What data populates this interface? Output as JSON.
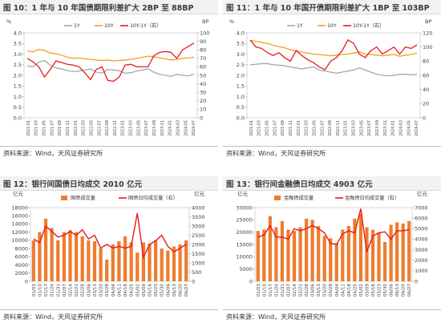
{
  "source_text": "资料来源：Wind，天风证券研究所",
  "colors": {
    "gray": "#a6a6a6",
    "orange": "#f4a11a",
    "red": "#e81a1a",
    "bar": "#ed7d31",
    "axis": "#7f7f7f"
  },
  "chart_data": [
    {
      "type": "line",
      "title": "图 10：1 年与 10 年国债期限利差扩大 2BP 至 88BP",
      "left_unit": "%",
      "right_unit": "BP",
      "left_ylim": [
        0.0,
        4.0
      ],
      "left_ticks": [
        "0.0",
        "0.5",
        "1.0",
        "1.5",
        "2.0",
        "2.5",
        "3.0",
        "3.5",
        "4.0"
      ],
      "right_ylim": [
        0,
        100
      ],
      "right_ticks": [
        "0",
        "10",
        "20",
        "30",
        "40",
        "50",
        "60",
        "70",
        "80",
        "90",
        "100"
      ],
      "x_ticks": [
        "2021-01",
        "2021-03",
        "2021-05",
        "2021-07",
        "2021-09",
        "2021-11",
        "2022-01",
        "2022-03",
        "2022-05",
        "2022-07",
        "2022-09",
        "2022-11",
        "2023-01",
        "2023-03",
        "2023-05",
        "2023-07",
        "2023-09",
        "2023-11",
        "2024-01",
        "2024-03",
        "2024-05",
        "2024-07"
      ],
      "series": [
        {
          "name": "1Y",
          "axis": "left",
          "color": "#a6a6a6",
          "values": [
            2.45,
            2.4,
            2.62,
            2.7,
            2.48,
            2.35,
            2.3,
            2.22,
            2.18,
            2.2,
            2.25,
            2.3,
            2.15,
            2.1,
            2.28,
            2.25,
            2.22,
            2.1,
            2.12,
            2.2,
            2.25,
            2.3,
            2.15,
            2.05,
            2.0,
            1.95,
            2.05,
            2.0,
            1.98,
            2.05
          ]
        },
        {
          "name": "10Y",
          "axis": "left",
          "color": "#f4a11a",
          "values": [
            3.15,
            3.1,
            3.22,
            3.18,
            3.05,
            3.02,
            2.95,
            2.85,
            2.8,
            2.82,
            2.78,
            2.75,
            2.72,
            2.7,
            2.72,
            2.68,
            2.7,
            2.72,
            2.75,
            2.8,
            2.85,
            2.9,
            2.88,
            2.82,
            2.78,
            2.72,
            2.75,
            2.8,
            2.82,
            2.85
          ]
        },
        {
          "name": "10Y-1Y（右）",
          "axis": "right",
          "color": "#e81a1a",
          "values": [
            70,
            66,
            60,
            48,
            57,
            67,
            65,
            63,
            62,
            60,
            53,
            45,
            57,
            60,
            44,
            43,
            48,
            62,
            63,
            60,
            60,
            60,
            73,
            77,
            78,
            77,
            70,
            80,
            84,
            88
          ]
        }
      ]
    },
    {
      "type": "line",
      "title": "图 11：1 年与 10 年国开债期限利差扩大 1BP 至 103BP",
      "left_unit": "%",
      "right_unit": "BP",
      "left_ylim": [
        0.0,
        4.0
      ],
      "left_ticks": [
        "0.0",
        "0.5",
        "1.0",
        "1.5",
        "2.0",
        "2.5",
        "3.0",
        "3.5",
        "4.0"
      ],
      "right_ylim": [
        0,
        120
      ],
      "right_ticks": [
        "0",
        "20",
        "40",
        "60",
        "80",
        "100",
        "120"
      ],
      "x_ticks": [
        "2021-01",
        "2021-03",
        "2021-05",
        "2021-07",
        "2021-09",
        "2021-11",
        "2022-01",
        "2022-03",
        "2022-05",
        "2022-07",
        "2022-09",
        "2022-11",
        "2023-01",
        "2023-03",
        "2023-05",
        "2023-07",
        "2023-09",
        "2023-11",
        "2024-01",
        "2024-03",
        "2024-05",
        "2024-07"
      ],
      "series": [
        {
          "name": "1Y",
          "axis": "left",
          "color": "#a6a6a6",
          "values": [
            2.5,
            2.52,
            2.55,
            2.55,
            2.5,
            2.48,
            2.45,
            2.4,
            2.35,
            2.3,
            2.35,
            2.4,
            2.25,
            2.2,
            2.15,
            2.1,
            2.15,
            2.2,
            2.25,
            2.35,
            2.25,
            2.15,
            2.05,
            2.0,
            1.98,
            2.0,
            2.05,
            2.05,
            2.02,
            2.05
          ]
        },
        {
          "name": "10Y",
          "axis": "left",
          "color": "#f4a11a",
          "values": [
            3.65,
            3.6,
            3.55,
            3.5,
            3.42,
            3.35,
            3.3,
            3.2,
            3.15,
            3.1,
            3.05,
            3.0,
            2.98,
            2.95,
            2.92,
            2.95,
            2.98,
            3.0,
            3.05,
            3.1,
            3.0,
            2.98,
            2.95,
            2.92,
            2.95,
            2.98,
            2.9,
            2.95,
            2.98,
            3.05
          ]
        },
        {
          "name": "10Y-1Y（右）",
          "axis": "right",
          "color": "#e81a1a",
          "values": [
            110,
            100,
            98,
            92,
            88,
            92,
            85,
            80,
            95,
            88,
            82,
            78,
            72,
            68,
            80,
            85,
            95,
            110,
            105,
            90,
            85,
            95,
            100,
            90,
            95,
            100,
            90,
            100,
            98,
            103
          ]
        }
      ]
    },
    {
      "type": "bar",
      "title": "图 12：银行间国债日均成交 2010 亿元",
      "left_unit": "亿元",
      "right_unit": "亿元",
      "left_ylim": [
        0,
        18000
      ],
      "left_ticks": [
        "0",
        "2000",
        "4000",
        "6000",
        "8000",
        "10000",
        "12000",
        "14000",
        "16000",
        "18000"
      ],
      "right_ylim": [
        0,
        4000
      ],
      "right_ticks": [
        "0",
        "500",
        "1000",
        "1500",
        "2000",
        "2500",
        "3000",
        "3500",
        "4000"
      ],
      "categories": [
        "01/03",
        "01/10",
        "01/17",
        "01/24",
        "01/31",
        "02/07",
        "02/14",
        "02/21",
        "02/28",
        "03/06",
        "03/13",
        "03/20",
        "03/28",
        "04/04",
        "04/11",
        "04/18",
        "04/25",
        "05/02",
        "05/09",
        "05/16",
        "05/23",
        "05/30",
        "06/06",
        "06/13",
        "06/20",
        "06/27"
      ],
      "x_ticks": [
        "01/03",
        "01/10",
        "01/17",
        "01/24",
        "01/31",
        "02/07",
        "02/14",
        "02/21",
        "02/28",
        "03/06",
        "03/13",
        "03/20",
        "03/28",
        "04/04",
        "04/11",
        "04/18",
        "04/25",
        "05/02",
        "05/09",
        "05/16",
        "05/23",
        "05/30",
        "06/06",
        "06/13",
        "06/20",
        "06/27"
      ],
      "series": [
        {
          "name": "国债成交量",
          "axis": "left",
          "color": "#ed7d31",
          "values": [
            10000,
            12000,
            15300,
            13000,
            10000,
            12000,
            12500,
            12000,
            11000,
            10000,
            9800,
            8000,
            5300,
            9000,
            9800,
            11000,
            9500,
            7000,
            9500,
            9200,
            10000,
            8000,
            7500,
            8500,
            9000,
            10000
          ]
        },
        {
          "name": "国债日均成交量（右）",
          "axis": "right",
          "color": "#e81a1a",
          "values": [
            2300,
            2100,
            3000,
            2700,
            2400,
            2500,
            2700,
            2500,
            2800,
            2300,
            2500,
            1800,
            2000,
            1800,
            1900,
            1800,
            1900,
            3700,
            1300,
            2000,
            2200,
            2500,
            1900,
            1600,
            1800,
            2010
          ]
        }
      ]
    },
    {
      "type": "bar",
      "title": "图 13：银行间金融债日均成交 4903 亿元",
      "left_unit": "亿元",
      "right_unit": "亿元",
      "left_ylim": [
        0,
        30000
      ],
      "left_ticks": [
        "0",
        "5000",
        "10000",
        "15000",
        "20000",
        "25000",
        "30000"
      ],
      "right_ylim": [
        0,
        7000
      ],
      "right_ticks": [
        "0",
        "1000",
        "2000",
        "3000",
        "4000",
        "5000",
        "6000",
        "7000"
      ],
      "categories": [
        "01/03",
        "01/10",
        "01/17",
        "01/24",
        "01/31",
        "02/07",
        "02/14",
        "02/21",
        "02/28",
        "03/06",
        "03/13",
        "03/20",
        "03/28",
        "04/04",
        "04/11",
        "04/18",
        "04/25",
        "05/02",
        "05/09",
        "05/16",
        "05/23",
        "05/30",
        "06/06",
        "06/13",
        "06/20",
        "06/27"
      ],
      "x_ticks": [
        "01/03",
        "01/10",
        "01/17",
        "01/24",
        "01/31",
        "02/07",
        "02/14",
        "02/21",
        "02/28",
        "03/06",
        "03/13",
        "03/20",
        "03/28",
        "04/04",
        "04/11",
        "04/18",
        "04/25",
        "05/02",
        "05/09",
        "05/16",
        "05/23",
        "05/30",
        "06/06",
        "06/13",
        "06/20",
        "06/27"
      ],
      "series": [
        {
          "name": "金融债成交量",
          "axis": "left",
          "color": "#ed7d31",
          "values": [
            20500,
            21000,
            26500,
            22000,
            24500,
            21000,
            20500,
            22000,
            25500,
            25000,
            22500,
            18500,
            17500,
            15500,
            21000,
            22500,
            25500,
            27500,
            22000,
            21000,
            20000,
            16000,
            23000,
            24000,
            23500,
            24500
          ]
        },
        {
          "name": "金融债日均成交量（右）",
          "axis": "right",
          "color": "#e81a1a",
          "values": [
            4200,
            4400,
            5300,
            4200,
            4200,
            4000,
            5000,
            4800,
            5000,
            5300,
            5000,
            4600,
            3600,
            3500,
            4500,
            4800,
            4600,
            6900,
            2800,
            4300,
            4600,
            4700,
            4000,
            4800,
            4800,
            4903
          ]
        }
      ]
    }
  ]
}
